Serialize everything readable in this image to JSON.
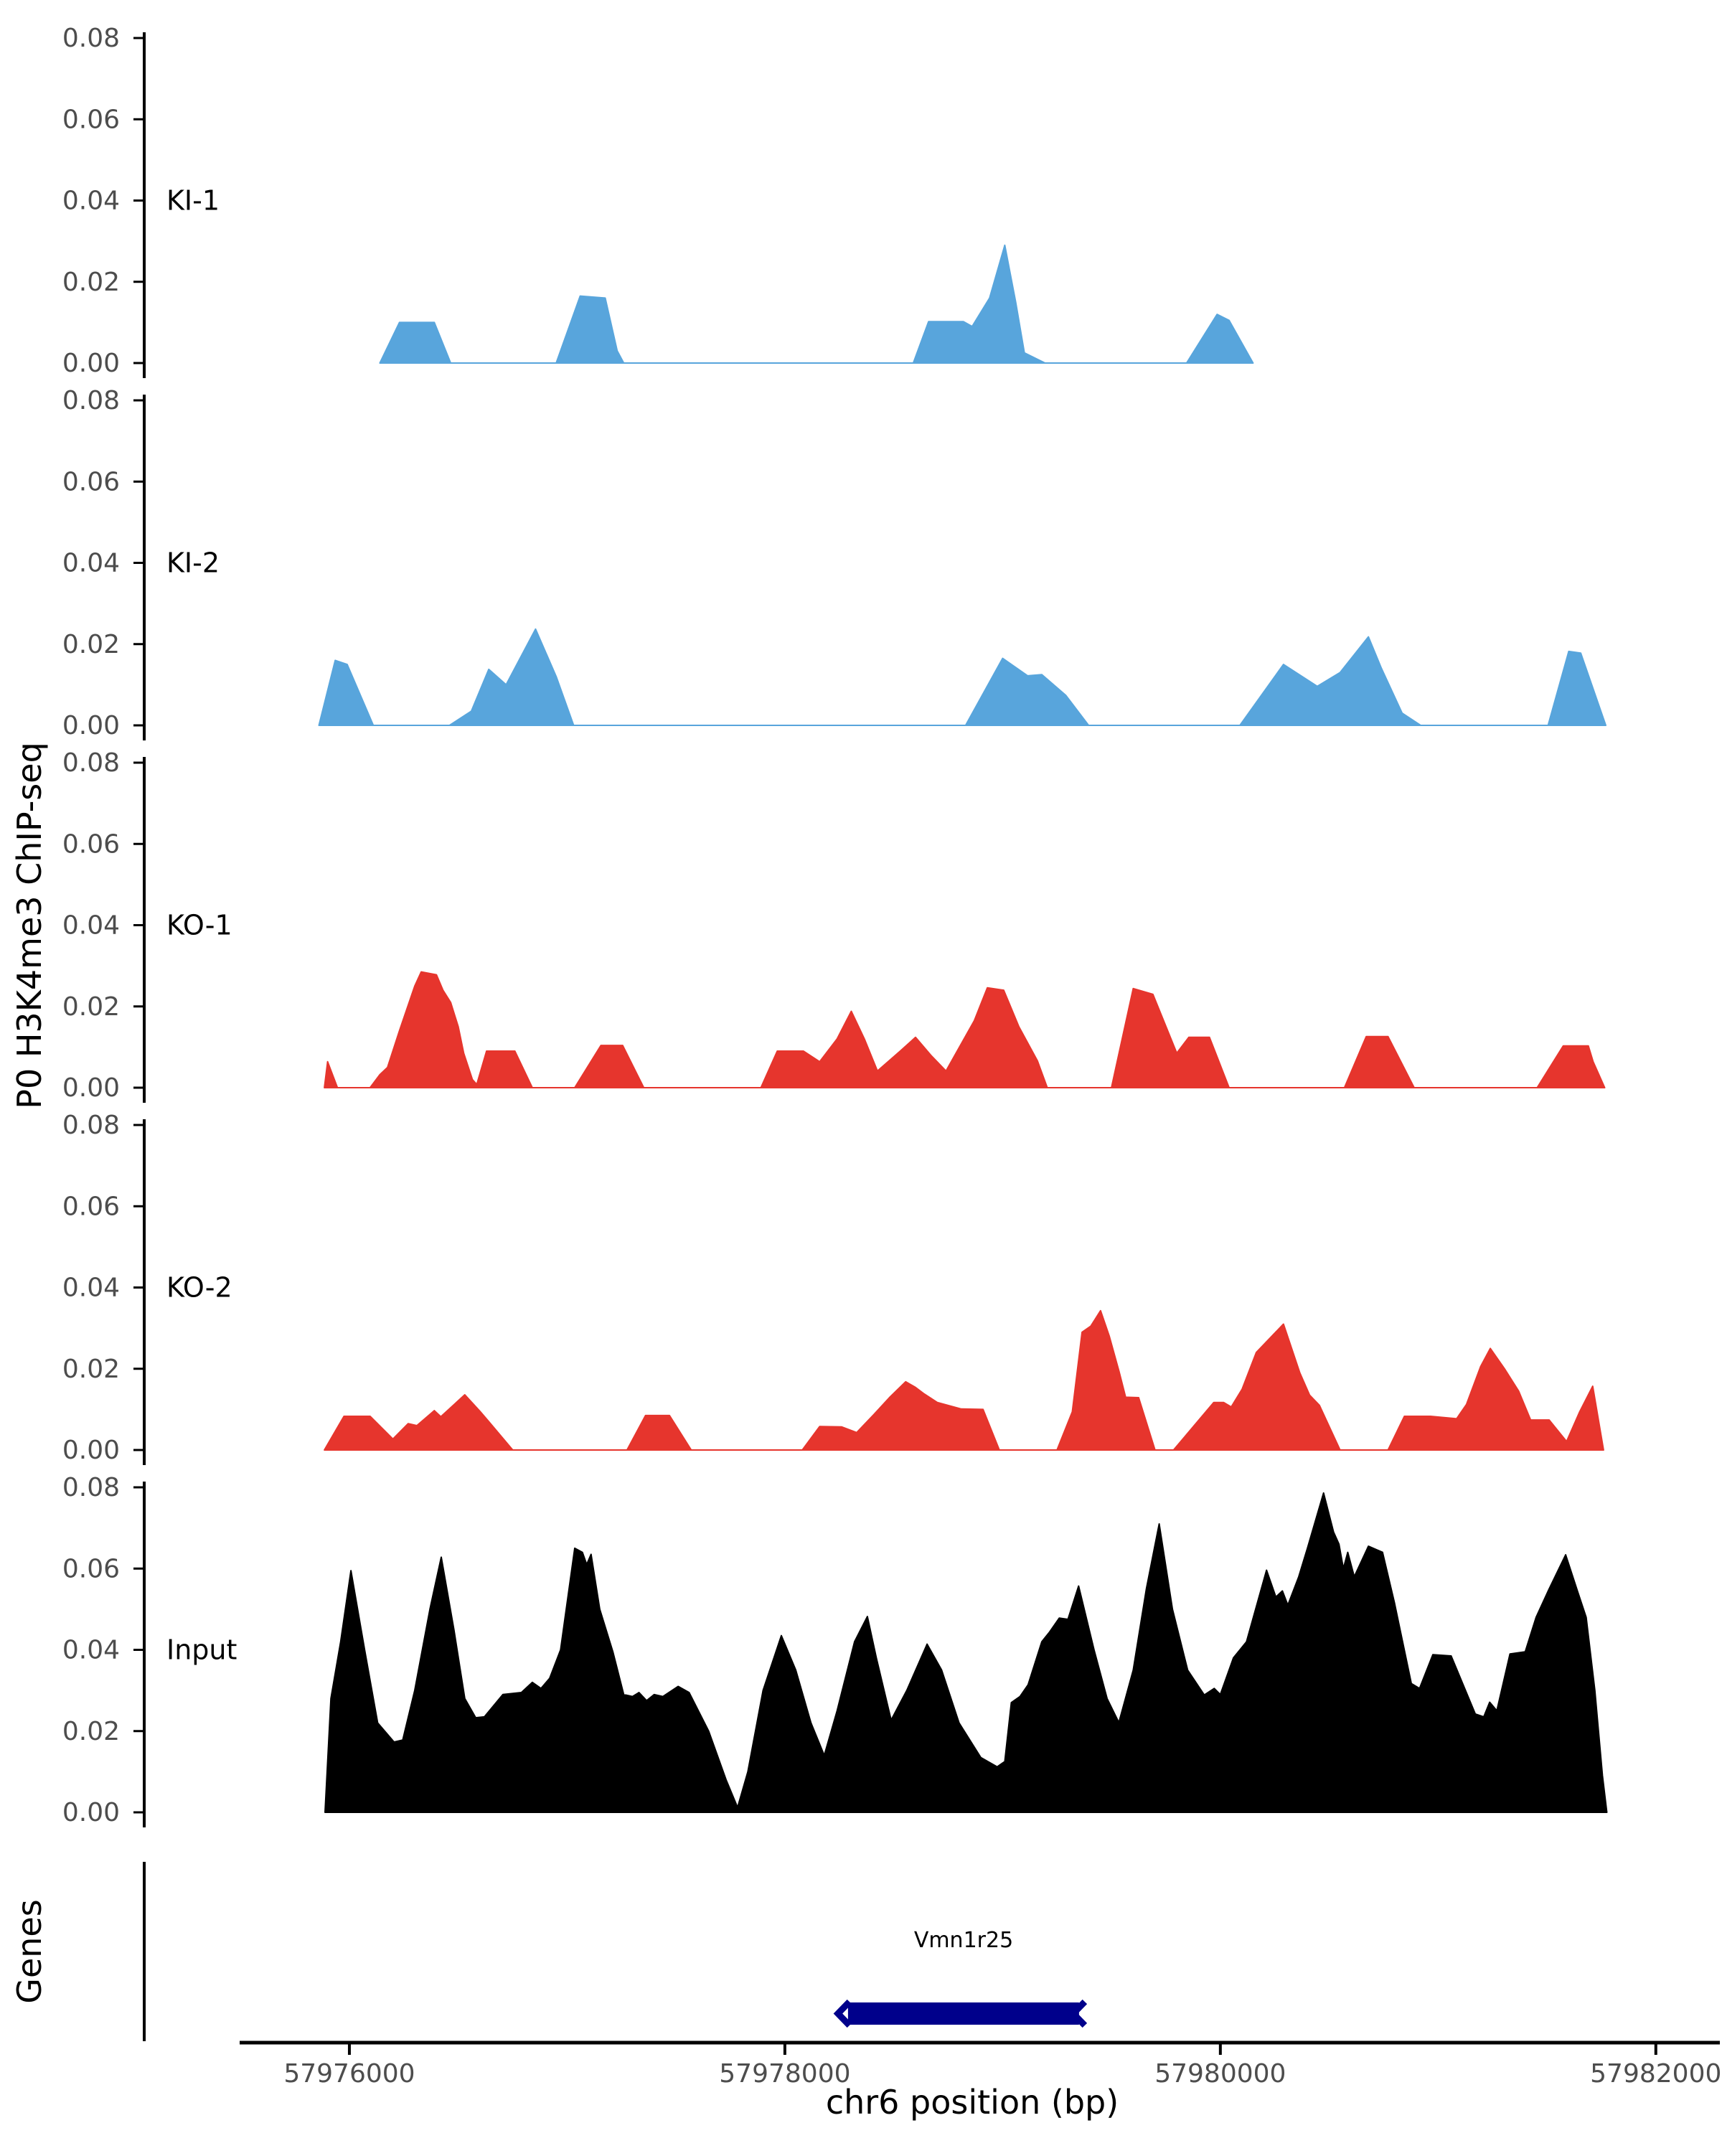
{
  "figure": {
    "kind": "ChIP-seq genome browser tracks"
  },
  "chart_data": {
    "type": "area",
    "title": "",
    "xlabel": "chr6 position (bp)",
    "ylabel": "P0 H3K4me3 ChIP-seq",
    "grid": "off",
    "legend": "none",
    "x_range_bp": [
      57975496,
      57982294
    ],
    "ylim": [
      0,
      0.08
    ],
    "y_ticks": [
      0,
      0.02,
      0.04,
      0.06,
      0.08
    ],
    "y_tick_labels": [
      "0.00",
      "0.02",
      "0.04",
      "0.06",
      "0.08"
    ],
    "x_ticks": [
      57976000,
      57978000,
      57980000,
      57982000
    ],
    "x_tick_labels": [
      "57976000",
      "57978000",
      "57980000",
      "57982000"
    ],
    "tracks": [
      {
        "name": "KI-1",
        "color": "#58a5dc",
        "points": [
          [
            57976140,
            0
          ],
          [
            57976230,
            0.01
          ],
          [
            57976390,
            0.01
          ],
          [
            57976465,
            0
          ],
          [
            57976950,
            0
          ],
          [
            57977060,
            0.0165
          ],
          [
            57977175,
            0.016
          ],
          [
            57977230,
            0.003
          ],
          [
            57977260,
            0
          ],
          [
            57978590,
            0
          ],
          [
            57978660,
            0.0102
          ],
          [
            57978820,
            0.0102
          ],
          [
            57978860,
            0.009
          ],
          [
            57978940,
            0.016
          ],
          [
            57979010,
            0.029
          ],
          [
            57979060,
            0.015
          ],
          [
            57979100,
            0.0025
          ],
          [
            57979195,
            0
          ],
          [
            57979845,
            0
          ],
          [
            57979985,
            0.012
          ],
          [
            57980040,
            0.0105
          ],
          [
            57980150,
            0
          ]
        ]
      },
      {
        "name": "KI-2",
        "color": "#58a5dc",
        "points": [
          [
            57975860,
            0
          ],
          [
            57975935,
            0.016
          ],
          [
            57975990,
            0.015
          ],
          [
            57976110,
            0
          ],
          [
            57976460,
            0
          ],
          [
            57976560,
            0.0035
          ],
          [
            57976640,
            0.0138
          ],
          [
            57976720,
            0.01
          ],
          [
            57976855,
            0.0237
          ],
          [
            57976950,
            0.012
          ],
          [
            57977030,
            0
          ],
          [
            57978830,
            0
          ],
          [
            57979000,
            0.0165
          ],
          [
            57979115,
            0.0122
          ],
          [
            57979180,
            0.0125
          ],
          [
            57979290,
            0.0074
          ],
          [
            57979395,
            0
          ],
          [
            57980090,
            0
          ],
          [
            57980290,
            0.015
          ],
          [
            57980445,
            0.0096
          ],
          [
            57980550,
            0.013
          ],
          [
            57980680,
            0.0218
          ],
          [
            57980740,
            0.014
          ],
          [
            57980835,
            0.003
          ],
          [
            57980920,
            0
          ],
          [
            57981505,
            0
          ],
          [
            57981600,
            0.0182
          ],
          [
            57981655,
            0.0178
          ],
          [
            57981770,
            0
          ]
        ]
      },
      {
        "name": "KO-1",
        "color": "#e6352d",
        "points": [
          [
            57975885,
            0
          ],
          [
            57975900,
            0.0064
          ],
          [
            57975945,
            0
          ],
          [
            57976095,
            0
          ],
          [
            57976140,
            0.0032
          ],
          [
            57976175,
            0.005
          ],
          [
            57976230,
            0.014
          ],
          [
            57976300,
            0.025
          ],
          [
            57976330,
            0.0285
          ],
          [
            57976400,
            0.0278
          ],
          [
            57976430,
            0.024
          ],
          [
            57976465,
            0.021
          ],
          [
            57976500,
            0.015
          ],
          [
            57976525,
            0.0085
          ],
          [
            57976565,
            0.002
          ],
          [
            57976585,
            0.0008
          ],
          [
            57976630,
            0.009
          ],
          [
            57976760,
            0.009
          ],
          [
            57976840,
            0
          ],
          [
            57977035,
            0
          ],
          [
            57977155,
            0.0104
          ],
          [
            57977255,
            0.0104
          ],
          [
            57977352,
            0
          ],
          [
            57977890,
            0
          ],
          [
            57977965,
            0.009
          ],
          [
            57978085,
            0.009
          ],
          [
            57978160,
            0.0064
          ],
          [
            57978240,
            0.012
          ],
          [
            57978305,
            0.0188
          ],
          [
            57978365,
            0.012
          ],
          [
            57978425,
            0.0041
          ],
          [
            57978530,
            0.009
          ],
          [
            57978600,
            0.0124
          ],
          [
            57978670,
            0.008
          ],
          [
            57978740,
            0.0041
          ],
          [
            57978870,
            0.0165
          ],
          [
            57978930,
            0.0246
          ],
          [
            57979005,
            0.024
          ],
          [
            57979075,
            0.015
          ],
          [
            57979160,
            0.0066
          ],
          [
            57979205,
            0
          ],
          [
            57979500,
            0
          ],
          [
            57979600,
            0.0244
          ],
          [
            57979690,
            0.023
          ],
          [
            57979800,
            0.0085
          ],
          [
            57979855,
            0.0124
          ],
          [
            57979950,
            0.0124
          ],
          [
            57980040,
            0
          ],
          [
            57980570,
            0
          ],
          [
            57980670,
            0.0126
          ],
          [
            57980770,
            0.0126
          ],
          [
            57980890,
            0
          ],
          [
            57981455,
            0
          ],
          [
            57981575,
            0.0103
          ],
          [
            57981690,
            0.0103
          ],
          [
            57981712,
            0.0064
          ],
          [
            57981765,
            0
          ]
        ]
      },
      {
        "name": "KO-2",
        "color": "#e6352d",
        "points": [
          [
            57975885,
            0
          ],
          [
            57975975,
            0.0083
          ],
          [
            57976095,
            0.0083
          ],
          [
            57976200,
            0.0027
          ],
          [
            57976270,
            0.0065
          ],
          [
            57976310,
            0.006
          ],
          [
            57976390,
            0.0097
          ],
          [
            57976420,
            0.0082
          ],
          [
            57976530,
            0.0136
          ],
          [
            57976600,
            0.0095
          ],
          [
            57976640,
            0.007
          ],
          [
            57976750,
            0
          ],
          [
            57977275,
            0
          ],
          [
            57977360,
            0.0085
          ],
          [
            57977470,
            0.0085
          ],
          [
            57977570,
            0
          ],
          [
            57978080,
            0
          ],
          [
            57978160,
            0.0058
          ],
          [
            57978260,
            0.0057
          ],
          [
            57978330,
            0.0043
          ],
          [
            57978410,
            0.0088
          ],
          [
            57978480,
            0.0129
          ],
          [
            57978555,
            0.0168
          ],
          [
            57978600,
            0.0154
          ],
          [
            57978640,
            0.0138
          ],
          [
            57978700,
            0.0117
          ],
          [
            57978810,
            0.0101
          ],
          [
            57978910,
            0.01
          ],
          [
            57978985,
            0
          ],
          [
            57979250,
            0
          ],
          [
            57979320,
            0.0094
          ],
          [
            57979365,
            0.029
          ],
          [
            57979405,
            0.0305
          ],
          [
            57979450,
            0.0343
          ],
          [
            57979490,
            0.028
          ],
          [
            57979535,
            0.0193
          ],
          [
            57979565,
            0.013
          ],
          [
            57979625,
            0.0129
          ],
          [
            57979700,
            0
          ],
          [
            57979785,
            0
          ],
          [
            57979970,
            0.0117
          ],
          [
            57980015,
            0.0117
          ],
          [
            57980050,
            0.0106
          ],
          [
            57980100,
            0.015
          ],
          [
            57980165,
            0.024
          ],
          [
            57980290,
            0.031
          ],
          [
            57980365,
            0.019
          ],
          [
            57980410,
            0.0135
          ],
          [
            57980455,
            0.011
          ],
          [
            57980550,
            0
          ],
          [
            57980770,
            0
          ],
          [
            57980845,
            0.0083
          ],
          [
            57980965,
            0.0083
          ],
          [
            57981085,
            0.0077
          ],
          [
            57981130,
            0.0112
          ],
          [
            57981195,
            0.0205
          ],
          [
            57981240,
            0.025
          ],
          [
            57981305,
            0.02
          ],
          [
            57981370,
            0.0145
          ],
          [
            57981425,
            0.0074
          ],
          [
            57981510,
            0.0074
          ],
          [
            57981590,
            0.0021
          ],
          [
            57981650,
            0.0094
          ],
          [
            57981710,
            0.0157
          ],
          [
            57981760,
            0
          ]
        ]
      },
      {
        "name": "Input",
        "color": "#000000",
        "points": [
          [
            57975888,
            0
          ],
          [
            57975915,
            0.028
          ],
          [
            57975960,
            0.042
          ],
          [
            57976007,
            0.0595
          ],
          [
            57976070,
            0.04
          ],
          [
            57976130,
            0.022
          ],
          [
            57976205,
            0.0173
          ],
          [
            57976245,
            0.0178
          ],
          [
            57976300,
            0.03
          ],
          [
            57976370,
            0.05
          ],
          [
            57976422,
            0.0628
          ],
          [
            57976480,
            0.045
          ],
          [
            57976530,
            0.028
          ],
          [
            57976580,
            0.0233
          ],
          [
            57976620,
            0.0235
          ],
          [
            57976705,
            0.029
          ],
          [
            57976790,
            0.0295
          ],
          [
            57976840,
            0.032
          ],
          [
            57976880,
            0.0305
          ],
          [
            57976920,
            0.033
          ],
          [
            57976970,
            0.04
          ],
          [
            57977035,
            0.065
          ],
          [
            57977070,
            0.064
          ],
          [
            57977090,
            0.061
          ],
          [
            57977110,
            0.0635
          ],
          [
            57977150,
            0.05
          ],
          [
            57977210,
            0.0395
          ],
          [
            57977260,
            0.029
          ],
          [
            57977300,
            0.0285
          ],
          [
            57977330,
            0.0295
          ],
          [
            57977365,
            0.0275
          ],
          [
            57977400,
            0.029
          ],
          [
            57977440,
            0.0285
          ],
          [
            57977510,
            0.031
          ],
          [
            57977560,
            0.0295
          ],
          [
            57977650,
            0.02
          ],
          [
            57977730,
            0.008
          ],
          [
            57977783,
            0.0012
          ],
          [
            57977830,
            0.01
          ],
          [
            57977900,
            0.03
          ],
          [
            57977984,
            0.0435
          ],
          [
            57978050,
            0.035
          ],
          [
            57978120,
            0.022
          ],
          [
            57978181,
            0.014
          ],
          [
            57978240,
            0.025
          ],
          [
            57978320,
            0.042
          ],
          [
            57978379,
            0.0482
          ],
          [
            57978420,
            0.038
          ],
          [
            57978488,
            0.0227
          ],
          [
            57978560,
            0.03
          ],
          [
            57978653,
            0.0414
          ],
          [
            57978720,
            0.035
          ],
          [
            57978800,
            0.022
          ],
          [
            57978900,
            0.0135
          ],
          [
            57978975,
            0.0112
          ],
          [
            57979010,
            0.0125
          ],
          [
            57979040,
            0.027
          ],
          [
            57979080,
            0.0285
          ],
          [
            57979117,
            0.0314
          ],
          [
            57979180,
            0.042
          ],
          [
            57979216,
            0.0444
          ],
          [
            57979260,
            0.0478
          ],
          [
            57979300,
            0.0475
          ],
          [
            57979349,
            0.0557
          ],
          [
            57979420,
            0.04
          ],
          [
            57979480,
            0.028
          ],
          [
            57979534,
            0.0221
          ],
          [
            57979600,
            0.035
          ],
          [
            57979660,
            0.055
          ],
          [
            57979719,
            0.071
          ],
          [
            57979780,
            0.05
          ],
          [
            57979850,
            0.035
          ],
          [
            57979926,
            0.0289
          ],
          [
            57979972,
            0.0305
          ],
          [
            57980000,
            0.029
          ],
          [
            57980060,
            0.038
          ],
          [
            57980120,
            0.042
          ],
          [
            57980212,
            0.0596
          ],
          [
            57980255,
            0.053
          ],
          [
            57980285,
            0.0545
          ],
          [
            57980310,
            0.051
          ],
          [
            57980360,
            0.058
          ],
          [
            57980400,
            0.065
          ],
          [
            57980474,
            0.0786
          ],
          [
            57980520,
            0.069
          ],
          [
            57980545,
            0.066
          ],
          [
            57980565,
            0.06
          ],
          [
            57980585,
            0.064
          ],
          [
            57980615,
            0.058
          ],
          [
            57980680,
            0.0655
          ],
          [
            57980745,
            0.064
          ],
          [
            57980800,
            0.0515
          ],
          [
            57980877,
            0.0317
          ],
          [
            57980915,
            0.0305
          ],
          [
            57980976,
            0.0388
          ],
          [
            57981060,
            0.0385
          ],
          [
            57981171,
            0.0242
          ],
          [
            57981210,
            0.0235
          ],
          [
            57981237,
            0.0271
          ],
          [
            57981270,
            0.025
          ],
          [
            57981330,
            0.039
          ],
          [
            57981400,
            0.0395
          ],
          [
            57981450,
            0.048
          ],
          [
            57981510,
            0.055
          ],
          [
            57981586,
            0.0634
          ],
          [
            57981640,
            0.0545
          ],
          [
            57981680,
            0.048
          ],
          [
            57981720,
            0.03
          ],
          [
            57981755,
            0.009
          ],
          [
            57981775,
            0
          ]
        ]
      }
    ],
    "genes_track": {
      "title": "Genes",
      "genes": [
        {
          "name": "Vmn1r25",
          "start": 57978290,
          "end": 57979351,
          "strand": "-",
          "color": "#00008b"
        }
      ]
    }
  }
}
